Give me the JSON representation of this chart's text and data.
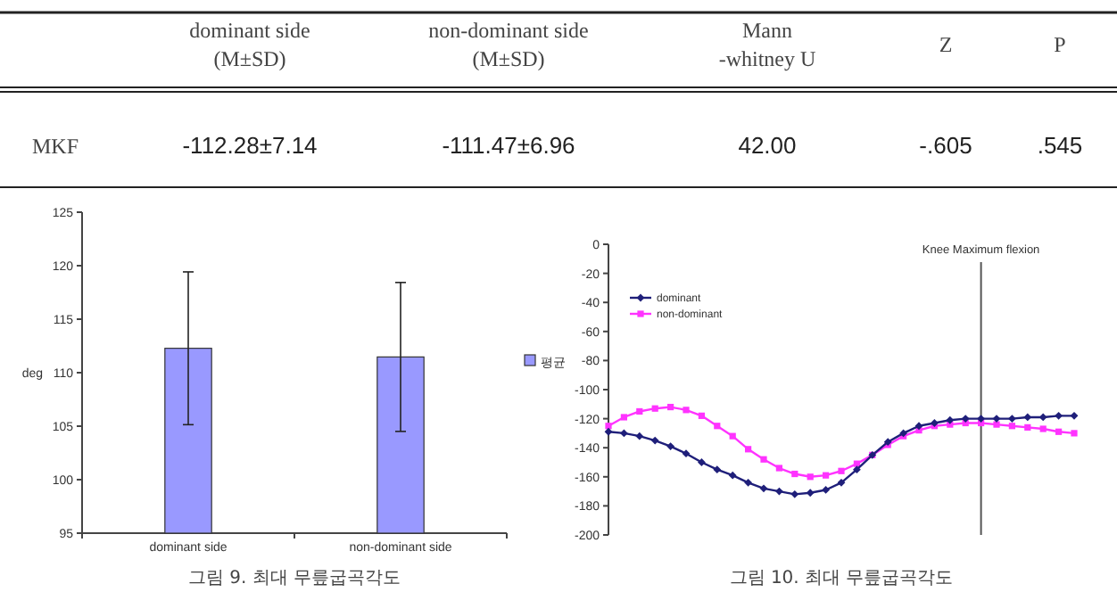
{
  "chart_data": [
    {
      "type": "other",
      "annotations": [
        "dominant side (M±SD)",
        "non-dominant side (M±SD)",
        "Mann -whitney U",
        "Z",
        "P",
        "MKF",
        "-112.28±7.14",
        "-111.47±6.96",
        "42.00",
        "-.605",
        ".545"
      ]
    },
    {
      "type": "bar",
      "title": "그림 9. 최대 무릎굽곡각도",
      "ylabel": "deg",
      "categories": [
        "dominant side",
        "non-dominant side"
      ],
      "ylim": [
        95,
        125
      ],
      "yticks": [
        95,
        100,
        105,
        110,
        115,
        120,
        125
      ],
      "legend": "right",
      "series": [
        {
          "name": "평균",
          "color": "#9999ff",
          "values": [
            112.28,
            111.47
          ],
          "errors": [
            7.14,
            6.96
          ]
        }
      ]
    },
    {
      "type": "line",
      "title": "그림 10. 최대 무릎굽곡각도",
      "categories": [
        null,
        null,
        null,
        null,
        null,
        null,
        null,
        null,
        null,
        null,
        null,
        null,
        null,
        null,
        null,
        null,
        null,
        null,
        null,
        null,
        null,
        null,
        null,
        null,
        null,
        null,
        null,
        null,
        null,
        null,
        null
      ],
      "ylim": [
        -200,
        0
      ],
      "yticks": [
        0,
        -20,
        -40,
        -60,
        -80,
        -100,
        -120,
        -140,
        -160,
        -180,
        -200
      ],
      "legend": "top left",
      "tick_labels": "y",
      "annotations": [
        "Knee Maximum flexion"
      ],
      "series": [
        {
          "name": "dominant",
          "color": "#1f1f7a",
          "marker": "diamond",
          "values": [
            -129,
            -130,
            -132,
            -135,
            -139,
            -144,
            -150,
            -155,
            -159,
            -164,
            -168,
            -170,
            -172,
            -171,
            -169,
            -164,
            -155,
            -145,
            -136,
            -130,
            -125,
            -123,
            -121,
            -120,
            -120,
            -120,
            -120,
            -119,
            -119,
            -118,
            -118
          ]
        },
        {
          "name": "non-dominant",
          "color": "#ff33ff",
          "marker": "square",
          "values": [
            -125,
            -119,
            -115,
            -113,
            -112,
            -114,
            -118,
            -125,
            -132,
            -141,
            -148,
            -154,
            -158,
            -160,
            -159,
            -156,
            -151,
            -145,
            -138,
            -132,
            -128,
            -125,
            -124,
            -123,
            -123,
            -124,
            -125,
            -126,
            -127,
            -129,
            -130
          ]
        }
      ]
    }
  ]
}
